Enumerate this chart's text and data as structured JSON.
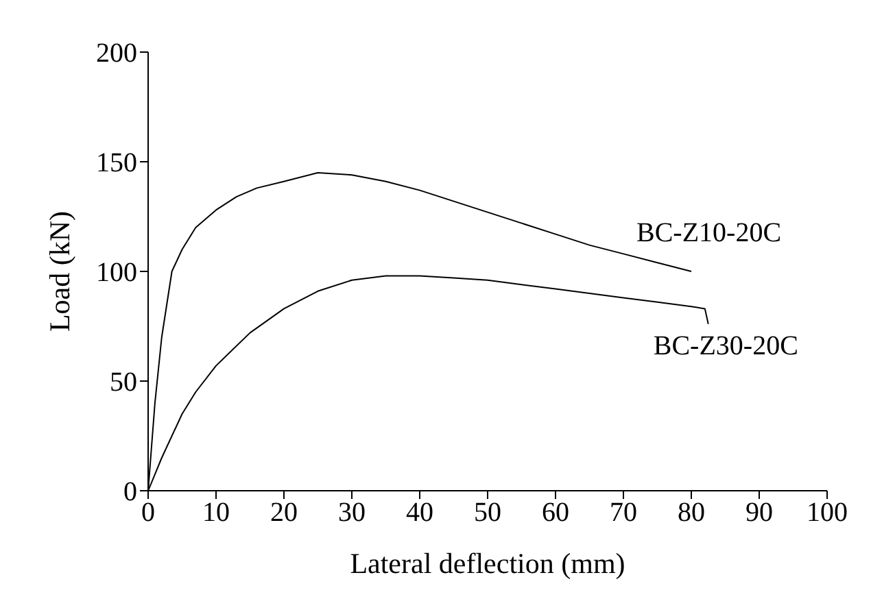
{
  "chart_data": {
    "type": "line",
    "xlabel": "Lateral deflection (mm)",
    "ylabel": "Load (kN)",
    "xlim": [
      0,
      100
    ],
    "xticks": [
      0,
      10,
      20,
      30,
      40,
      50,
      60,
      70,
      80,
      90,
      100
    ],
    "ylim": [
      0,
      200
    ],
    "yticks": [
      0,
      50,
      100,
      150,
      200
    ],
    "marker": "none",
    "line_style": "solid",
    "series": [
      {
        "name": "BC-Z10-20C",
        "color": "#000000",
        "x": [
          0,
          1,
          2,
          3.5,
          5,
          7,
          10,
          13,
          16,
          20,
          25,
          30,
          35,
          40,
          45,
          50,
          55,
          60,
          65,
          70,
          75,
          80
        ],
        "values": [
          0,
          40,
          70,
          100,
          110,
          120,
          128,
          134,
          138,
          141,
          145,
          144,
          141,
          137,
          132,
          127,
          122,
          117,
          112,
          108,
          104,
          100
        ]
      },
      {
        "name": "BC-Z30-20C",
        "color": "#000000",
        "x": [
          0,
          2,
          5,
          7,
          10,
          15,
          20,
          25,
          30,
          35,
          40,
          45,
          50,
          55,
          60,
          65,
          70,
          75,
          80,
          82,
          82.5
        ],
        "values": [
          0,
          15,
          35,
          45,
          57,
          72,
          83,
          91,
          96,
          98,
          98,
          97,
          96,
          94,
          92,
          90,
          88,
          86,
          84,
          83,
          76
        ]
      }
    ]
  }
}
